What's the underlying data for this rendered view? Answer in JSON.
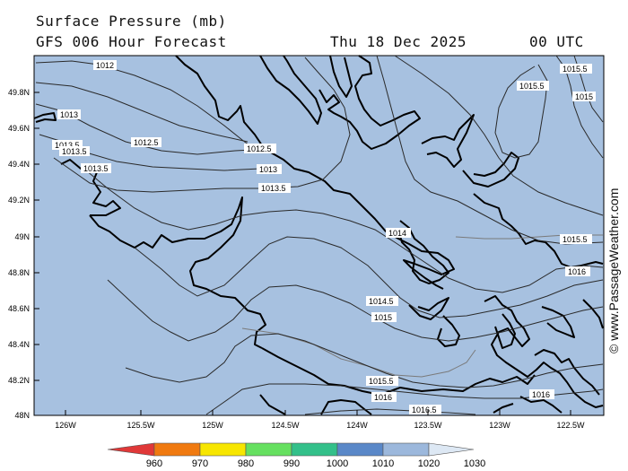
{
  "header": {
    "title": "Surface Pressure (mb)",
    "subtitle": "GFS 006 Hour Forecast",
    "date": "Thu 18 Dec 2025",
    "time": "00 UTC"
  },
  "watermark": "© www.PassageWeather.com",
  "axes": {
    "lat_labels": [
      "49.8N",
      "49.6N",
      "49.4N",
      "49.2N",
      "49N",
      "48.8N",
      "48.6N",
      "48.4N",
      "48.2N",
      "48N"
    ],
    "lon_labels": [
      "126W",
      "125.5W",
      "125W",
      "124.5W",
      "124W",
      "123.5W",
      "123W",
      "122.5W"
    ]
  },
  "isobars": [
    {
      "label": "1012",
      "value": 1012
    },
    {
      "label": "1012.5",
      "value": 1012.5
    },
    {
      "label": "1013",
      "value": 1013
    },
    {
      "label": "1013.5",
      "value": 1013.5
    },
    {
      "label": "1014",
      "value": 1014
    },
    {
      "label": "1014.5",
      "value": 1014.5
    },
    {
      "label": "1015",
      "value": 1015
    },
    {
      "label": "1015.5",
      "value": 1015.5
    },
    {
      "label": "1016",
      "value": 1016
    },
    {
      "label": "1016.5",
      "value": 1016.5
    }
  ],
  "colorbar": {
    "ticks": [
      "960",
      "970",
      "980",
      "990",
      "1000",
      "1010",
      "1020",
      "1030"
    ],
    "colors": [
      "#e03838",
      "#f07a10",
      "#f7e600",
      "#66e060",
      "#33c08a",
      "#5a88c8",
      "#9cb8dc",
      "#dde8f4"
    ]
  },
  "colors": {
    "sea": "#a7c1e0",
    "coast": "#000000",
    "isobar": "#2a2a2a"
  }
}
